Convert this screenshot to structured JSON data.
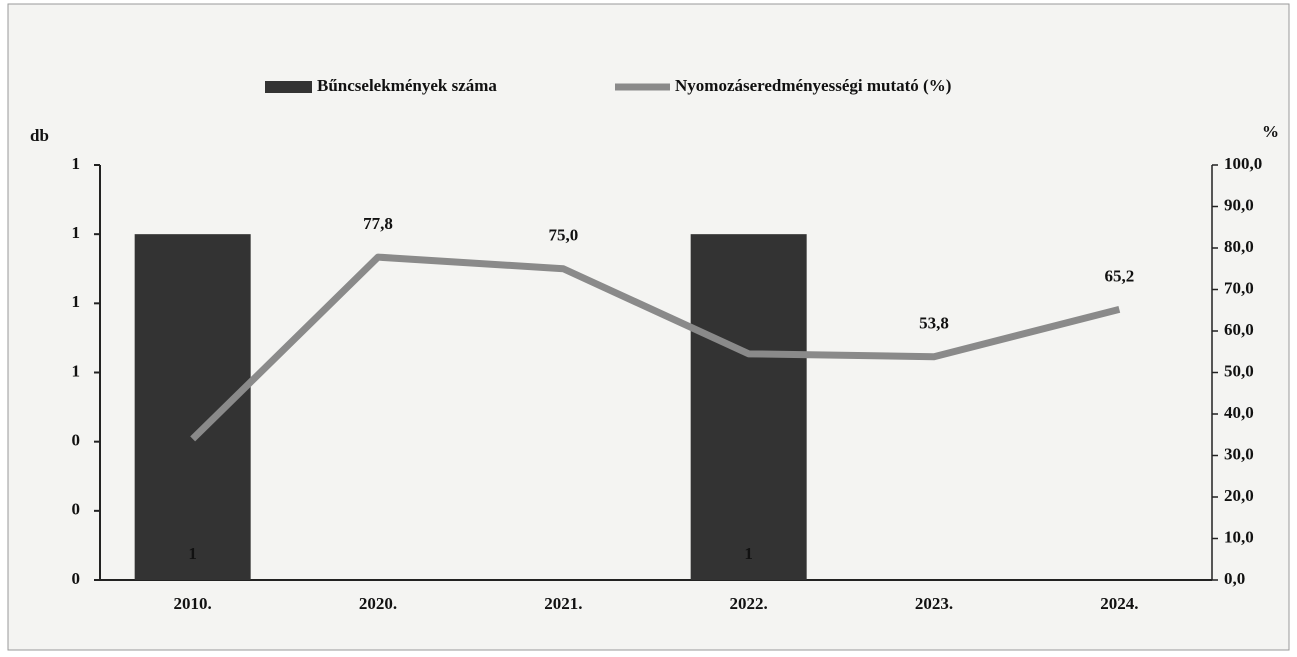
{
  "chart_data": {
    "type": "combo",
    "categories": [
      "2010.",
      "2020.",
      "2021.",
      "2022.",
      "2023.",
      "2024."
    ],
    "y_label": "db",
    "y2_label": "%",
    "ylim": [
      0,
      1.2
    ],
    "yticks": [
      {
        "value": 0,
        "label": "0"
      },
      {
        "value": 0.2,
        "label": "0"
      },
      {
        "value": 0.4,
        "label": "0"
      },
      {
        "value": 0.6,
        "label": "1"
      },
      {
        "value": 0.8,
        "label": "1"
      },
      {
        "value": 1.0,
        "label": "1"
      },
      {
        "value": 1.2,
        "label": "1"
      }
    ],
    "y2lim": [
      0,
      100
    ],
    "y2ticks": [
      {
        "value": 0,
        "label": "0,0"
      },
      {
        "value": 10,
        "label": "10,0"
      },
      {
        "value": 20,
        "label": "20,0"
      },
      {
        "value": 30,
        "label": "30,0"
      },
      {
        "value": 40,
        "label": "40,0"
      },
      {
        "value": 50,
        "label": "50,0"
      },
      {
        "value": 60,
        "label": "60,0"
      },
      {
        "value": 70,
        "label": "70,0"
      },
      {
        "value": 80,
        "label": "80,0"
      },
      {
        "value": 90,
        "label": "90,0"
      },
      {
        "value": 100,
        "label": "100,0"
      }
    ],
    "legend": "top",
    "series": [
      {
        "name": "Bűncselekmények száma",
        "type": "bar",
        "color": "#333333",
        "values": [
          1,
          0,
          0,
          1,
          0,
          0
        ],
        "value_labels": [
          "1",
          null,
          null,
          "1",
          null,
          null
        ]
      },
      {
        "name": "Nyomozáseredményességi mutató (%)",
        "type": "line",
        "axis": "y2",
        "color": "#8a8a8a",
        "values": [
          34.0,
          77.8,
          75.0,
          54.5,
          53.8,
          65.2
        ],
        "value_labels": [
          null,
          "77,8",
          "75,0",
          null,
          "53,8",
          "65,2"
        ]
      }
    ]
  }
}
